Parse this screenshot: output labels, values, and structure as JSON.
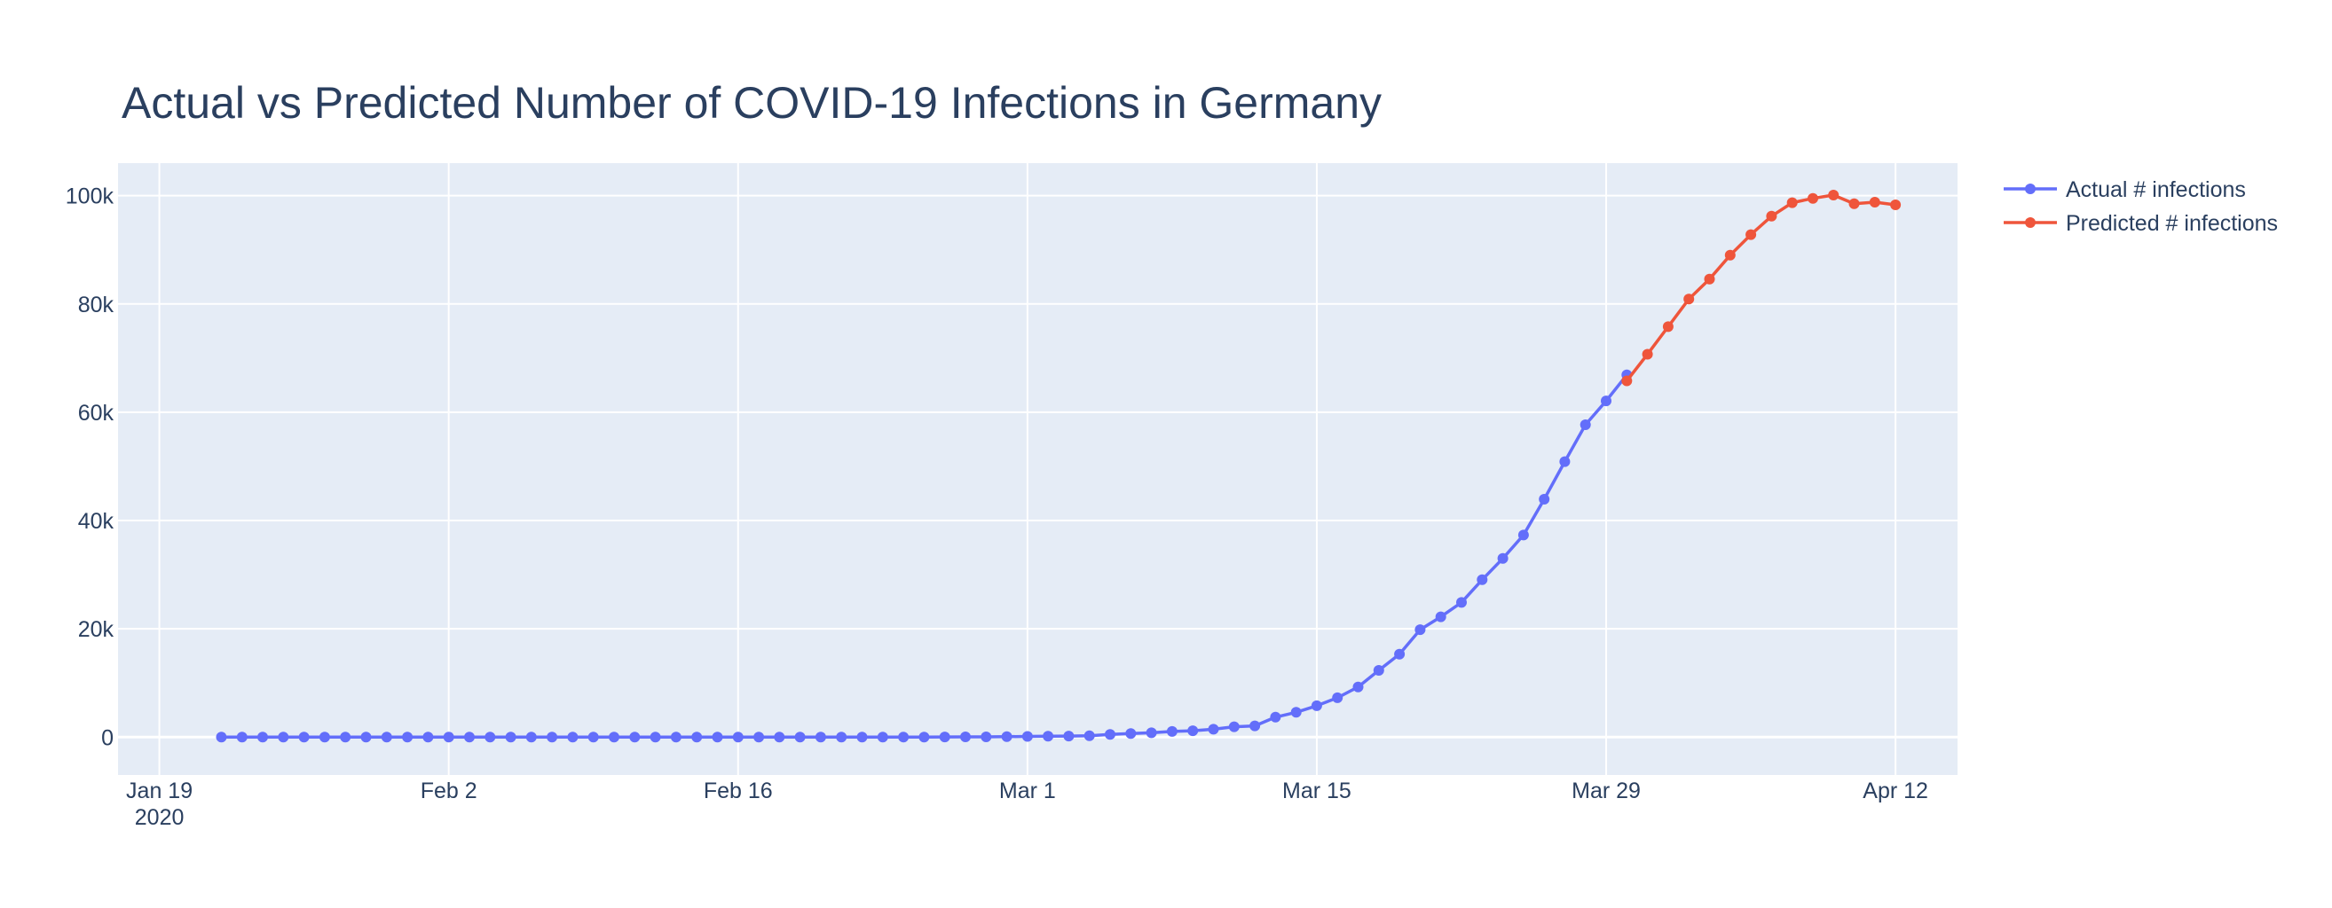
{
  "chart_data": {
    "type": "line",
    "title": "Actual vs Predicted Number of COVID-19 Infections in Germany",
    "xlabel": "",
    "ylabel": "",
    "x_axis": {
      "type": "date",
      "range": [
        "2020-01-17",
        "2020-04-15"
      ],
      "ticks": [
        {
          "date": "2020-01-19",
          "label": "Jan 19",
          "sublabel": "2020"
        },
        {
          "date": "2020-02-02",
          "label": "Feb 2"
        },
        {
          "date": "2020-02-16",
          "label": "Feb 16"
        },
        {
          "date": "2020-03-01",
          "label": "Mar 1"
        },
        {
          "date": "2020-03-15",
          "label": "Mar 15"
        },
        {
          "date": "2020-03-29",
          "label": "Mar 29"
        },
        {
          "date": "2020-04-12",
          "label": "Apr 12"
        }
      ]
    },
    "y_axis": {
      "range": [
        -7000,
        106000
      ],
      "ticks": [
        {
          "value": 0,
          "label": "0"
        },
        {
          "value": 20000,
          "label": "20k"
        },
        {
          "value": 40000,
          "label": "40k"
        },
        {
          "value": 60000,
          "label": "60k"
        },
        {
          "value": 80000,
          "label": "80k"
        },
        {
          "value": 100000,
          "label": "100k"
        }
      ]
    },
    "grid": true,
    "legend_position": "top-right",
    "series": [
      {
        "name": "Actual # infections",
        "color": "#636efa",
        "points": [
          [
            "2020-01-22",
            0
          ],
          [
            "2020-01-23",
            0
          ],
          [
            "2020-01-24",
            0
          ],
          [
            "2020-01-25",
            0
          ],
          [
            "2020-01-26",
            0
          ],
          [
            "2020-01-27",
            1
          ],
          [
            "2020-01-28",
            4
          ],
          [
            "2020-01-29",
            4
          ],
          [
            "2020-01-30",
            4
          ],
          [
            "2020-01-31",
            5
          ],
          [
            "2020-02-01",
            8
          ],
          [
            "2020-02-02",
            10
          ],
          [
            "2020-02-03",
            12
          ],
          [
            "2020-02-04",
            12
          ],
          [
            "2020-02-05",
            12
          ],
          [
            "2020-02-06",
            12
          ],
          [
            "2020-02-07",
            13
          ],
          [
            "2020-02-08",
            13
          ],
          [
            "2020-02-09",
            14
          ],
          [
            "2020-02-10",
            14
          ],
          [
            "2020-02-11",
            16
          ],
          [
            "2020-02-12",
            16
          ],
          [
            "2020-02-13",
            16
          ],
          [
            "2020-02-14",
            16
          ],
          [
            "2020-02-15",
            16
          ],
          [
            "2020-02-16",
            16
          ],
          [
            "2020-02-17",
            16
          ],
          [
            "2020-02-18",
            16
          ],
          [
            "2020-02-19",
            16
          ],
          [
            "2020-02-20",
            16
          ],
          [
            "2020-02-21",
            16
          ],
          [
            "2020-02-22",
            16
          ],
          [
            "2020-02-23",
            16
          ],
          [
            "2020-02-24",
            16
          ],
          [
            "2020-02-25",
            17
          ],
          [
            "2020-02-26",
            27
          ],
          [
            "2020-02-27",
            46
          ],
          [
            "2020-02-28",
            48
          ],
          [
            "2020-02-29",
            79
          ],
          [
            "2020-03-01",
            130
          ],
          [
            "2020-03-02",
            159
          ],
          [
            "2020-03-03",
            196
          ],
          [
            "2020-03-04",
            262
          ],
          [
            "2020-03-05",
            482
          ],
          [
            "2020-03-06",
            670
          ],
          [
            "2020-03-07",
            799
          ],
          [
            "2020-03-08",
            1040
          ],
          [
            "2020-03-09",
            1176
          ],
          [
            "2020-03-10",
            1457
          ],
          [
            "2020-03-11",
            1908
          ],
          [
            "2020-03-12",
            2078
          ],
          [
            "2020-03-13",
            3675
          ],
          [
            "2020-03-14",
            4585
          ],
          [
            "2020-03-15",
            5795
          ],
          [
            "2020-03-16",
            7272
          ],
          [
            "2020-03-17",
            9257
          ],
          [
            "2020-03-18",
            12327
          ],
          [
            "2020-03-19",
            15320
          ],
          [
            "2020-03-20",
            19848
          ],
          [
            "2020-03-21",
            22213
          ],
          [
            "2020-03-22",
            24873
          ],
          [
            "2020-03-23",
            29056
          ],
          [
            "2020-03-24",
            32986
          ],
          [
            "2020-03-25",
            37323
          ],
          [
            "2020-03-26",
            43938
          ],
          [
            "2020-03-27",
            50871
          ],
          [
            "2020-03-28",
            57695
          ],
          [
            "2020-03-29",
            62095
          ],
          [
            "2020-03-30",
            66885
          ]
        ]
      },
      {
        "name": "Predicted # infections",
        "color": "#ef553b",
        "points": [
          [
            "2020-03-30",
            65800
          ],
          [
            "2020-03-31",
            70700
          ],
          [
            "2020-04-01",
            75800
          ],
          [
            "2020-04-02",
            80900
          ],
          [
            "2020-04-03",
            84600
          ],
          [
            "2020-04-04",
            89000
          ],
          [
            "2020-04-05",
            92800
          ],
          [
            "2020-04-06",
            96200
          ],
          [
            "2020-04-07",
            98700
          ],
          [
            "2020-04-08",
            99500
          ],
          [
            "2020-04-09",
            100100
          ],
          [
            "2020-04-10",
            98500
          ],
          [
            "2020-04-11",
            98800
          ],
          [
            "2020-04-12",
            98300
          ]
        ]
      }
    ]
  }
}
